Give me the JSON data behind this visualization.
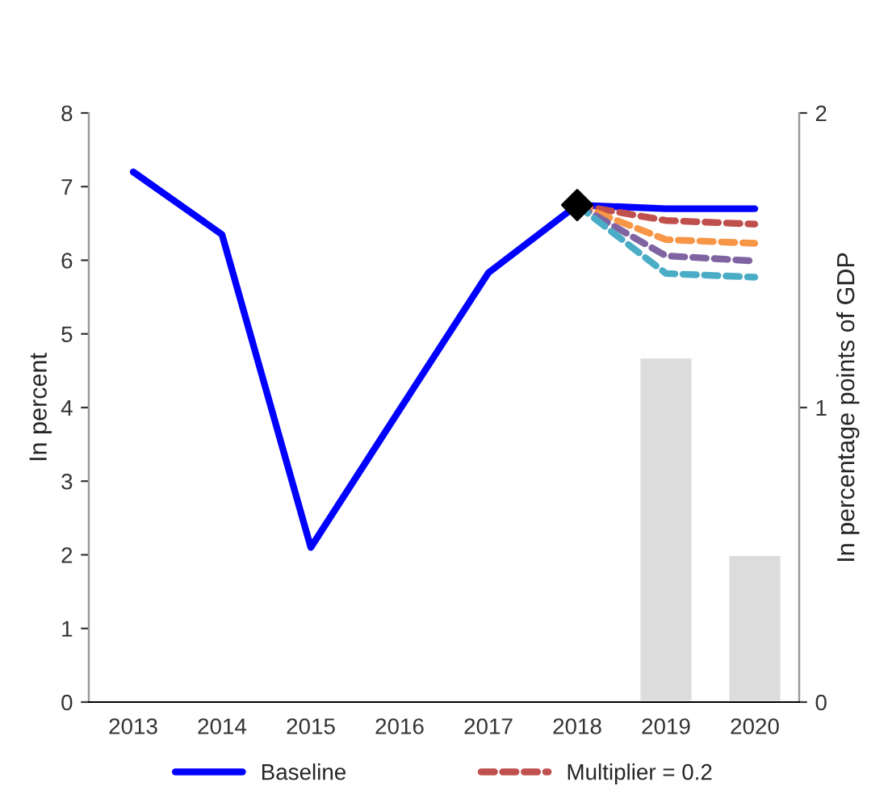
{
  "chart_data": {
    "type": "line",
    "ylabel": "In percent",
    "y2label": "In percentage points of GDP",
    "categories": [
      "2013",
      "2014",
      "2015",
      "2016",
      "2017",
      "2018",
      "2019",
      "2020"
    ],
    "series": [
      {
        "type": "bar",
        "axis": "y2",
        "color": "#dcdcdc",
        "values": [
          null,
          null,
          null,
          null,
          null,
          null,
          1.17,
          0.5
        ]
      },
      {
        "name": "Baseline",
        "color": "#0000ff",
        "line_style": "solid",
        "values": [
          7.2,
          6.35,
          2.1,
          3.97,
          5.83,
          6.75,
          6.7,
          6.7
        ]
      },
      {
        "name": "Multiplier = 0.2",
        "color": "#c0504d",
        "line_style": "dashed",
        "values": [
          null,
          null,
          null,
          null,
          null,
          6.75,
          6.54,
          6.49
        ]
      },
      {
        "color": "#f79646",
        "line_style": "dashed",
        "values": [
          null,
          null,
          null,
          null,
          null,
          6.75,
          6.28,
          6.23
        ]
      },
      {
        "color": "#8064a2",
        "line_style": "dashed",
        "values": [
          null,
          null,
          null,
          null,
          null,
          6.75,
          6.06,
          5.99
        ]
      },
      {
        "color": "#4bacc6",
        "line_style": "dashed",
        "values": [
          null,
          null,
          null,
          null,
          null,
          6.75,
          5.82,
          5.77
        ]
      },
      {
        "type": "scatter",
        "color": "#000000",
        "marker": "diamond",
        "values": [
          null,
          null,
          null,
          null,
          null,
          6.75,
          null,
          null
        ]
      }
    ],
    "ylim": [
      0,
      8
    ],
    "yticks": [
      0,
      1,
      2,
      3,
      4,
      5,
      6,
      7,
      8
    ],
    "y2lim": [
      0,
      2
    ],
    "y2ticks": [
      0,
      1,
      2
    ],
    "grid": false,
    "legend": "bottom"
  }
}
